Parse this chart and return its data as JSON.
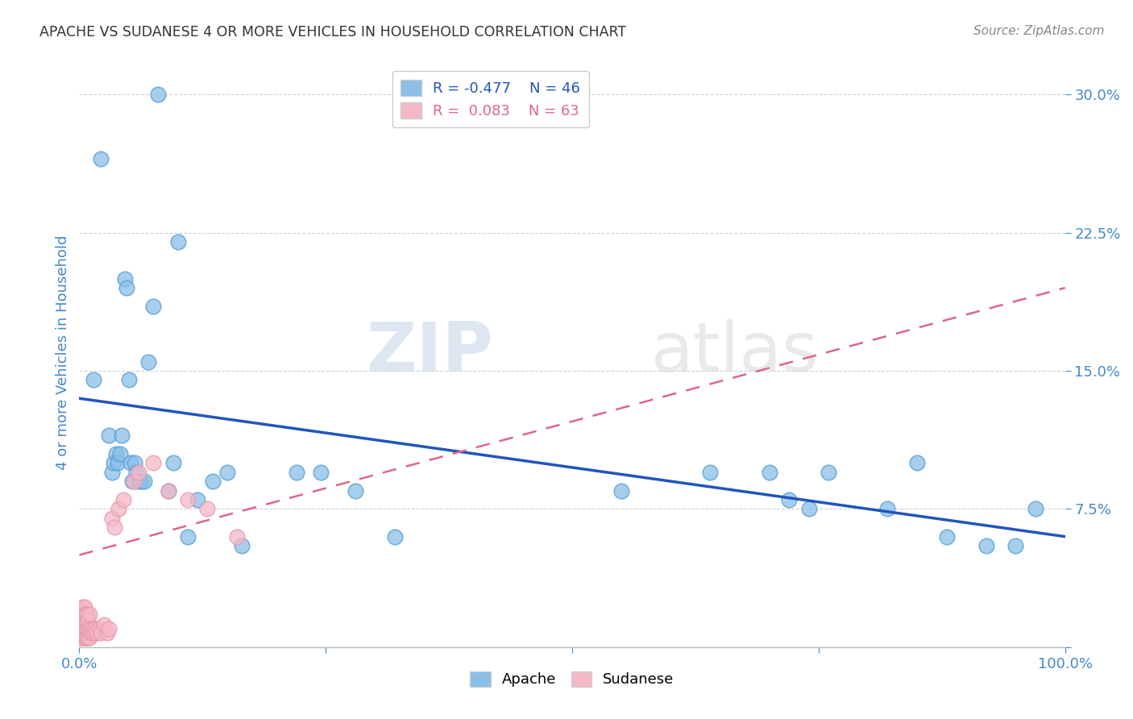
{
  "title": "APACHE VS SUDANESE 4 OR MORE VEHICLES IN HOUSEHOLD CORRELATION CHART",
  "source": "Source: ZipAtlas.com",
  "ylabel": "4 or more Vehicles in Household",
  "xlim": [
    0.0,
    1.0
  ],
  "ylim": [
    0.0,
    0.32
  ],
  "ytick_vals": [
    0.0,
    0.075,
    0.15,
    0.225,
    0.3
  ],
  "ytick_labels": [
    "",
    "7.5%",
    "15.0%",
    "22.5%",
    "30.0%"
  ],
  "xtick_vals": [
    0.0,
    0.25,
    0.5,
    0.75,
    1.0
  ],
  "xtick_labels": [
    "0.0%",
    "",
    "",
    "",
    "100.0%"
  ],
  "watermark_zip": "ZIP",
  "watermark_atlas": "atlas",
  "apache_color": "#89bfe8",
  "sudanese_color": "#f5b8c8",
  "apache_edge_color": "#5a9fd4",
  "sudanese_edge_color": "#e89ab0",
  "apache_line_color": "#2255bb",
  "sudanese_line_color": "#dd6688",
  "apache_R": -0.477,
  "apache_N": 46,
  "sudanese_R": 0.083,
  "sudanese_N": 63,
  "apache_points_x": [
    0.014,
    0.022,
    0.03,
    0.033,
    0.035,
    0.037,
    0.039,
    0.041,
    0.043,
    0.046,
    0.048,
    0.05,
    0.052,
    0.054,
    0.056,
    0.058,
    0.06,
    0.063,
    0.066,
    0.07,
    0.075,
    0.08,
    0.09,
    0.095,
    0.1,
    0.11,
    0.12,
    0.135,
    0.15,
    0.165,
    0.22,
    0.245,
    0.28,
    0.32,
    0.55,
    0.64,
    0.7,
    0.72,
    0.74,
    0.76,
    0.82,
    0.85,
    0.88,
    0.92,
    0.95,
    0.97
  ],
  "apache_points_y": [
    0.145,
    0.265,
    0.115,
    0.095,
    0.1,
    0.105,
    0.1,
    0.105,
    0.115,
    0.2,
    0.195,
    0.145,
    0.1,
    0.09,
    0.1,
    0.095,
    0.09,
    0.09,
    0.09,
    0.155,
    0.185,
    0.3,
    0.085,
    0.1,
    0.22,
    0.06,
    0.08,
    0.09,
    0.095,
    0.055,
    0.095,
    0.095,
    0.085,
    0.06,
    0.085,
    0.095,
    0.095,
    0.08,
    0.075,
    0.095,
    0.075,
    0.1,
    0.06,
    0.055,
    0.055,
    0.075
  ],
  "sudanese_points_x": [
    0.0,
    0.001,
    0.001,
    0.001,
    0.001,
    0.002,
    0.002,
    0.002,
    0.002,
    0.002,
    0.003,
    0.003,
    0.003,
    0.003,
    0.003,
    0.004,
    0.004,
    0.004,
    0.004,
    0.005,
    0.005,
    0.005,
    0.005,
    0.005,
    0.006,
    0.006,
    0.006,
    0.006,
    0.007,
    0.007,
    0.007,
    0.008,
    0.008,
    0.008,
    0.009,
    0.009,
    0.009,
    0.01,
    0.01,
    0.01,
    0.011,
    0.012,
    0.013,
    0.014,
    0.015,
    0.016,
    0.018,
    0.02,
    0.022,
    0.025,
    0.028,
    0.03,
    0.033,
    0.036,
    0.04,
    0.045,
    0.055,
    0.06,
    0.075,
    0.09,
    0.11,
    0.13,
    0.16
  ],
  "sudanese_points_y": [
    0.005,
    0.005,
    0.01,
    0.015,
    0.02,
    0.005,
    0.008,
    0.01,
    0.015,
    0.02,
    0.005,
    0.008,
    0.012,
    0.018,
    0.022,
    0.005,
    0.008,
    0.012,
    0.018,
    0.005,
    0.008,
    0.012,
    0.018,
    0.022,
    0.005,
    0.008,
    0.012,
    0.018,
    0.005,
    0.01,
    0.018,
    0.005,
    0.01,
    0.018,
    0.005,
    0.01,
    0.015,
    0.005,
    0.01,
    0.018,
    0.008,
    0.01,
    0.008,
    0.01,
    0.008,
    0.01,
    0.008,
    0.01,
    0.008,
    0.012,
    0.008,
    0.01,
    0.07,
    0.065,
    0.075,
    0.08,
    0.09,
    0.095,
    0.1,
    0.085,
    0.08,
    0.075,
    0.06
  ],
  "background_color": "#ffffff",
  "grid_color": "#d0d0d0",
  "title_color": "#333333",
  "axis_label_color": "#4488cc",
  "tick_label_color": "#4488cc",
  "source_color": "#888888",
  "legend_edge_color": "#cccccc"
}
